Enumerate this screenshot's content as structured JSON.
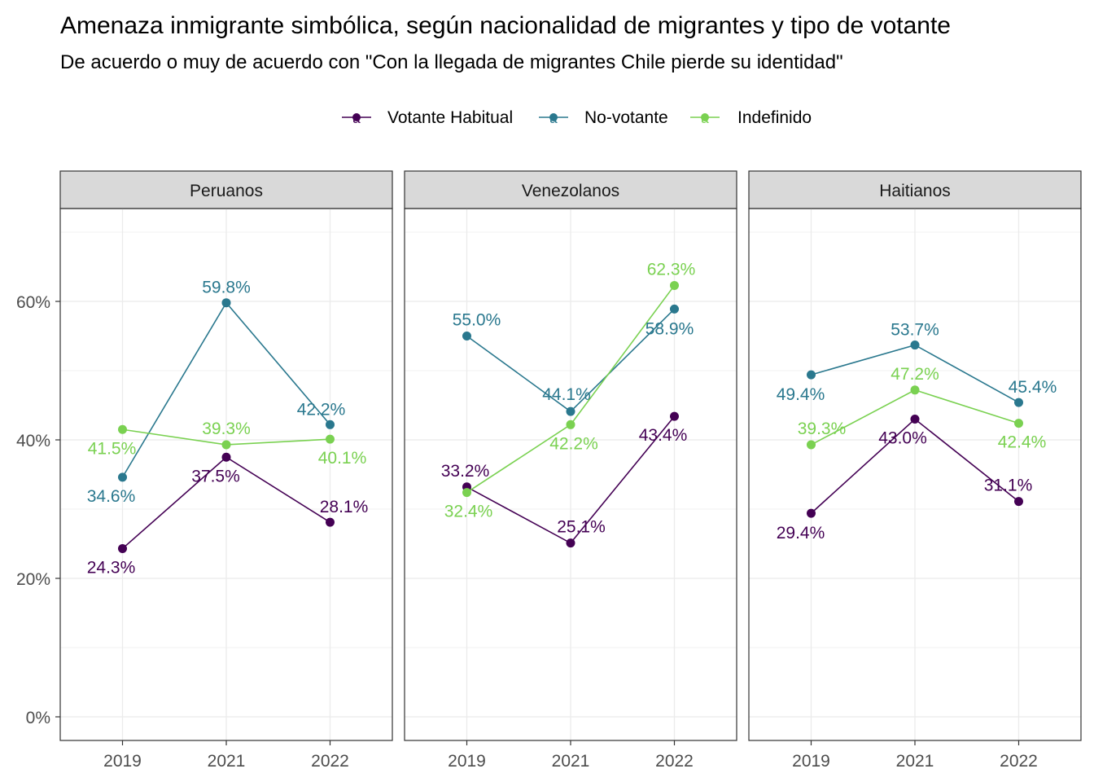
{
  "chart_data": {
    "type": "line",
    "title": "Amenaza inmigrante simbólica, según nacionalidad de migrantes y tipo de votante",
    "subtitle": "De acuerdo o muy de acuerdo con \"Con la llegada de migrantes Chile pierde su identidad\"",
    "legend": {
      "position": "top",
      "glyph": "a",
      "entries": [
        {
          "name": "Votante Habitual",
          "color": "#440154"
        },
        {
          "name": "No-votante",
          "color": "#2A788E"
        },
        {
          "name": "Indefinido",
          "color": "#7AD151"
        }
      ]
    },
    "x": [
      "2019",
      "2021",
      "2022"
    ],
    "ylim": [
      0,
      72
    ],
    "y_ticks": [
      0,
      20,
      40,
      60
    ],
    "y_tick_labels": [
      "0%",
      "20%",
      "40%",
      "60%"
    ],
    "grid": true,
    "facets": [
      {
        "name": "Peruanos",
        "series": [
          {
            "name": "Votante Habitual",
            "values": [
              24.3,
              37.5,
              28.1
            ],
            "labels": [
              "24.3%",
              "37.5%",
              "28.1%"
            ]
          },
          {
            "name": "No-votante",
            "values": [
              34.6,
              59.8,
              42.2
            ],
            "labels": [
              "34.6%",
              "59.8%",
              "42.2%"
            ]
          },
          {
            "name": "Indefinido",
            "values": [
              41.5,
              39.3,
              40.1
            ],
            "labels": [
              "41.5%",
              "39.3%",
              "40.1%"
            ]
          }
        ]
      },
      {
        "name": "Venezolanos",
        "series": [
          {
            "name": "Votante Habitual",
            "values": [
              33.2,
              25.1,
              43.4
            ],
            "labels": [
              "33.2%",
              "25.1%",
              "43.4%"
            ]
          },
          {
            "name": "No-votante",
            "values": [
              55.0,
              44.1,
              58.9
            ],
            "labels": [
              "55.0%",
              "44.1%",
              "58.9%"
            ]
          },
          {
            "name": "Indefinido",
            "values": [
              32.4,
              42.2,
              62.3
            ],
            "labels": [
              "32.4%",
              "42.2%",
              "62.3%"
            ]
          }
        ]
      },
      {
        "name": "Haitianos",
        "series": [
          {
            "name": "Votante Habitual",
            "values": [
              29.4,
              43.0,
              31.1
            ],
            "labels": [
              "29.4%",
              "43.0%",
              "31.1%"
            ]
          },
          {
            "name": "No-votante",
            "values": [
              49.4,
              53.7,
              45.4
            ],
            "labels": [
              "49.4%",
              "53.7%",
              "45.4%"
            ]
          },
          {
            "name": "Indefinido",
            "values": [
              39.3,
              47.2,
              42.4
            ],
            "labels": [
              "39.3%",
              "47.2%",
              "42.4%"
            ]
          }
        ]
      }
    ]
  }
}
